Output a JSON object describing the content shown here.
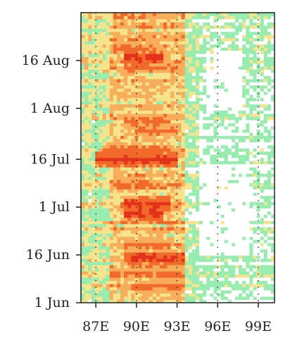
{
  "chart_data": {
    "type": "heatmap",
    "title": "",
    "xlabel": "",
    "ylabel": "",
    "x_ticks": [
      {
        "lon": 87,
        "label": "87E"
      },
      {
        "lon": 90,
        "label": "90E"
      },
      {
        "lon": 93,
        "label": "93E"
      },
      {
        "lon": 96,
        "label": "96E"
      },
      {
        "lon": 99,
        "label": "99E"
      }
    ],
    "y_ticks": [
      {
        "day": 0,
        "label": "1 Jun"
      },
      {
        "day": 15,
        "label": "16 Jun"
      },
      {
        "day": 30,
        "label": "1 Jul"
      },
      {
        "day": 45,
        "label": "16 Jul"
      },
      {
        "day": 61,
        "label": "1 Aug"
      },
      {
        "day": 76,
        "label": "16 Aug"
      }
    ],
    "x_range": [
      85.9,
      100.2
    ],
    "y_range": [
      0,
      91
    ],
    "grid": "dotted vertical lines at labeled longitudes",
    "levels_color": [
      "#ffffff",
      "#99ecaf",
      "#f4e48d",
      "#f8ad5a",
      "#f26a2a",
      "#e3311c"
    ],
    "x_bands": [
      {
        "lon_from": 85.9,
        "lon_to": 88.0,
        "base": 1.6
      },
      {
        "lon_from": 88.0,
        "lon_to": 91.5,
        "base": 2.6
      },
      {
        "lon_from": 91.5,
        "lon_to": 93.6,
        "base": 2.6
      },
      {
        "lon_from": 93.6,
        "lon_to": 94.6,
        "base": 1.2
      },
      {
        "lon_from": 94.6,
        "lon_to": 100.2,
        "base": 0.6
      }
    ],
    "wet_episodes": [
      {
        "day": 5,
        "lon_from": 90,
        "lon_to": 93.5,
        "level": 4
      },
      {
        "day": 9,
        "lon_from": 88,
        "lon_to": 93.5,
        "level": 4
      },
      {
        "day": 14,
        "lon_from": 89,
        "lon_to": 93.5,
        "level": 5
      },
      {
        "day": 18,
        "lon_from": 89,
        "lon_to": 92.5,
        "level": 4
      },
      {
        "day": 28,
        "lon_from": 89,
        "lon_to": 92.0,
        "level": 5
      },
      {
        "day": 31,
        "lon_from": 89,
        "lon_to": 92.5,
        "level": 5
      },
      {
        "day": 37,
        "lon_from": 88,
        "lon_to": 91.0,
        "level": 4
      },
      {
        "day": 45,
        "lon_from": 87,
        "lon_to": 93.0,
        "level": 5
      },
      {
        "day": 48,
        "lon_from": 87.5,
        "lon_to": 92.5,
        "level": 4
      },
      {
        "day": 54,
        "lon_from": 90,
        "lon_to": 93.0,
        "level": 4
      },
      {
        "day": 57,
        "lon_from": 89,
        "lon_to": 92.5,
        "level": 4
      },
      {
        "day": 74,
        "lon_from": 89,
        "lon_to": 93.0,
        "level": 4
      },
      {
        "day": 77,
        "lon_from": 89,
        "lon_to": 92.0,
        "level": 5
      },
      {
        "day": 80,
        "lon_from": 88,
        "lon_to": 91.5,
        "level": 4
      }
    ],
    "dry_patches": [
      {
        "day_from": 15,
        "day_to": 44,
        "lon_from": 94.6,
        "lon_to": 98.4
      },
      {
        "day_from": 60,
        "day_to": 79,
        "lon_from": 95.2,
        "lon_to": 97.8
      }
    ]
  }
}
